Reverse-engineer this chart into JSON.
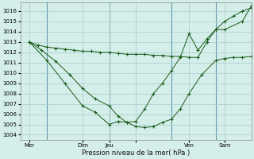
{
  "xlabel": "Pression niveau de la mer( hPa )",
  "background_color": "#d4eeea",
  "grid_color": "#a8ccc8",
  "line_color": "#1a5c1a",
  "ylim": [
    1003.5,
    1016.8
  ],
  "yticks": [
    1004,
    1005,
    1006,
    1007,
    1008,
    1009,
    1010,
    1011,
    1012,
    1013,
    1014,
    1015,
    1016
  ],
  "xlim": [
    0,
    13.0
  ],
  "xtick_positions": [
    0.5,
    3.5,
    5.0,
    6.5,
    9.5,
    11.5
  ],
  "xtick_labels": [
    "Mer",
    "Dim",
    "Jeu",
    "",
    "Ven",
    "Sam"
  ],
  "vlines": [
    1.5,
    5.0,
    8.5,
    11.0
  ],
  "line1_x": [
    0.5,
    1.0,
    1.5,
    2.0,
    2.5,
    3.0,
    3.5,
    4.0,
    4.5,
    5.0,
    5.5,
    6.0,
    6.5,
    7.0,
    7.5,
    8.0,
    8.5,
    9.0,
    9.5,
    10.0,
    10.5,
    11.0,
    11.5,
    12.0,
    12.5,
    13.0
  ],
  "line1_y": [
    1013.0,
    1012.7,
    1012.5,
    1012.4,
    1012.3,
    1012.2,
    1012.1,
    1012.1,
    1012.0,
    1012.0,
    1011.9,
    1011.8,
    1011.8,
    1011.8,
    1011.7,
    1011.7,
    1011.6,
    1011.6,
    1011.5,
    1011.5,
    1013.0,
    1014.2,
    1015.0,
    1015.5,
    1016.0,
    1016.3
  ],
  "line2_x": [
    0.5,
    1.2,
    2.0,
    2.8,
    3.5,
    4.2,
    5.0,
    5.5,
    6.0,
    6.5,
    7.0,
    7.5,
    8.0,
    8.5,
    9.0,
    9.5,
    10.2,
    11.0,
    11.5,
    12.0,
    12.5,
    13.0
  ],
  "line2_y": [
    1013.0,
    1012.2,
    1011.1,
    1009.8,
    1008.5,
    1007.5,
    1006.8,
    1005.8,
    1005.2,
    1004.8,
    1004.7,
    1004.8,
    1005.2,
    1005.5,
    1006.5,
    1008.0,
    1009.8,
    1011.2,
    1011.4,
    1011.5,
    1011.5,
    1011.6
  ],
  "line3_x": [
    0.5,
    1.5,
    2.5,
    3.5,
    4.2,
    5.0,
    5.5,
    6.0,
    6.5,
    7.0,
    7.5,
    8.0,
    8.5,
    9.0,
    9.5,
    10.0,
    10.5,
    11.0,
    11.5,
    12.5,
    13.0
  ],
  "line3_y": [
    1013.0,
    1011.2,
    1009.0,
    1006.8,
    1006.2,
    1005.0,
    1005.3,
    1005.2,
    1005.3,
    1006.5,
    1008.0,
    1009.0,
    1010.2,
    1011.5,
    1013.8,
    1012.2,
    1013.3,
    1014.2,
    1014.2,
    1015.0,
    1016.5
  ]
}
